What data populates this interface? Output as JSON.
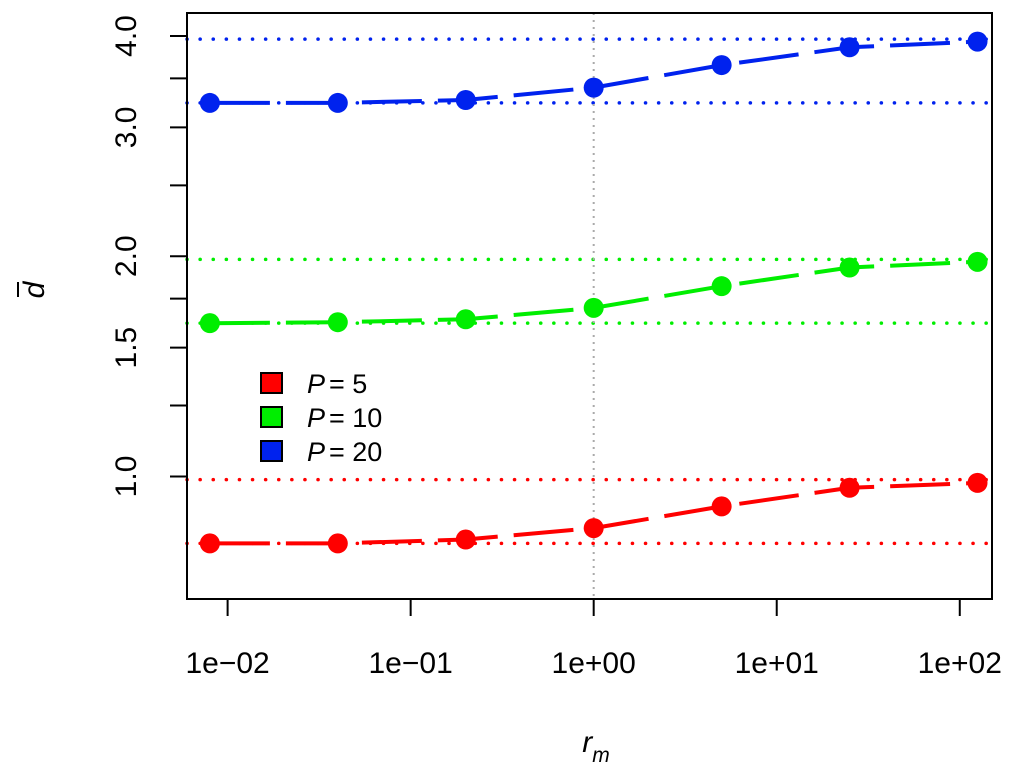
{
  "chart_data": {
    "type": "line",
    "xlabel": "r",
    "xlabel_sub": "m",
    "ylabel": "d",
    "ylabel_overline": true,
    "x_scale": "log",
    "y_scale": "log",
    "xlim": [
      0.006,
      150
    ],
    "ylim": [
      0.68,
      4.3
    ],
    "x": [
      0.008,
      0.04,
      0.2,
      1,
      5,
      25,
      125
    ],
    "x_ticks": [
      {
        "value": 0.01,
        "label": "1e−02"
      },
      {
        "value": 0.1,
        "label": "1e−01"
      },
      {
        "value": 1,
        "label": "1e+00"
      },
      {
        "value": 10,
        "label": "1e+01"
      },
      {
        "value": 100,
        "label": "1e+02"
      }
    ],
    "y_ticks": [
      {
        "value": 1.0,
        "label": "1.0"
      },
      {
        "value": 1.5,
        "label": "1.5"
      },
      {
        "value": 2.0,
        "label": "2.0"
      },
      {
        "value": 3.0,
        "label": "3.0"
      },
      {
        "value": 4.0,
        "label": "4.0"
      }
    ],
    "y_minor_ticks": [
      1.25,
      1.75,
      2.5,
      3.5
    ],
    "vline": 1,
    "grid": false,
    "legend": "left-center",
    "series": [
      {
        "name": "P = 5",
        "name_var": "P",
        "name_val": "5",
        "color": "#ff0000",
        "values": [
          0.81,
          0.81,
          0.82,
          0.85,
          0.91,
          0.965,
          0.98
        ],
        "ref_lines": [
          0.81,
          0.99
        ]
      },
      {
        "name": "P = 10",
        "name_var": "P",
        "name_val": "10",
        "color": "#00ee00",
        "values": [
          1.62,
          1.625,
          1.64,
          1.7,
          1.82,
          1.93,
          1.965
        ],
        "ref_lines": [
          1.62,
          1.98
        ]
      },
      {
        "name": "P = 20",
        "name_var": "P",
        "name_val": "20",
        "color": "#0022ee",
        "values": [
          3.24,
          3.24,
          3.27,
          3.4,
          3.65,
          3.86,
          3.93
        ],
        "ref_lines": [
          3.24,
          3.96
        ]
      }
    ]
  }
}
